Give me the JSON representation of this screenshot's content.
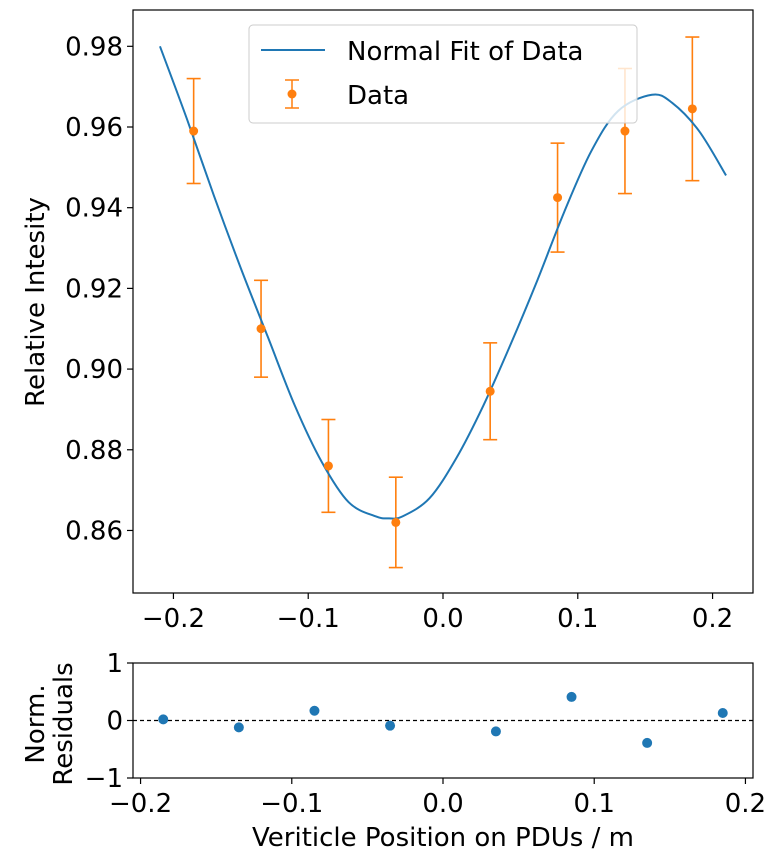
{
  "chart_data": [
    {
      "type": "line",
      "xlabel": "",
      "ylabel": "Relative Intesity",
      "xlim": [
        -0.23,
        0.23
      ],
      "ylim": [
        0.8445,
        0.989
      ],
      "xticks": [
        -0.2,
        -0.1,
        0.0,
        0.1,
        0.2
      ],
      "xtick_labels": [
        "−0.2",
        "−0.1",
        "0.0",
        "0.1",
        "0.2"
      ],
      "yticks": [
        0.86,
        0.88,
        0.9,
        0.92,
        0.94,
        0.96,
        0.98
      ],
      "ytick_labels": [
        "0.86",
        "0.88",
        "0.90",
        "0.92",
        "0.94",
        "0.96",
        "0.98"
      ],
      "grid": false,
      "legend_position": "top-center",
      "fit": {
        "name": "Normal Fit of Data",
        "color": "#1f77b4",
        "x": [
          -0.21,
          -0.19,
          -0.17,
          -0.15,
          -0.13,
          -0.11,
          -0.09,
          -0.07,
          -0.05,
          -0.04,
          -0.03,
          -0.01,
          0.01,
          0.03,
          0.05,
          0.07,
          0.09,
          0.11,
          0.13,
          0.155,
          0.17,
          0.19,
          0.21
        ],
        "y": [
          0.98,
          0.962,
          0.943,
          0.925,
          0.908,
          0.891,
          0.877,
          0.867,
          0.8635,
          0.863,
          0.8635,
          0.868,
          0.878,
          0.891,
          0.906,
          0.922,
          0.939,
          0.954,
          0.964,
          0.968,
          0.966,
          0.959,
          0.948
        ]
      },
      "data": {
        "name": "Data",
        "color": "#ff7f0e",
        "x": [
          -0.185,
          -0.135,
          -0.085,
          -0.035,
          0.035,
          0.085,
          0.135,
          0.185
        ],
        "y": [
          0.959,
          0.91,
          0.876,
          0.862,
          0.8945,
          0.9425,
          0.959,
          0.9645
        ],
        "yerr": [
          0.013,
          0.012,
          0.0115,
          0.0112,
          0.012,
          0.0135,
          0.0155,
          0.0178
        ]
      }
    },
    {
      "type": "scatter",
      "xlabel": "Veriticle Position on PDUs / m",
      "ylabel_lines": [
        "Norm.",
        "Residuals"
      ],
      "xlim": [
        -0.205,
        0.205
      ],
      "ylim": [
        -1,
        1
      ],
      "xticks": [
        -0.2,
        -0.1,
        0.0,
        0.1,
        0.2
      ],
      "xtick_labels": [
        "−0.2",
        "−0.1",
        "0.0",
        "0.1",
        "0.2"
      ],
      "yticks": [
        -1,
        0,
        1
      ],
      "ytick_labels": [
        "−1",
        "0",
        "1"
      ],
      "reference_line_y": 0,
      "series": [
        {
          "color": "#1f77b4",
          "x": [
            -0.185,
            -0.135,
            -0.085,
            -0.035,
            0.035,
            0.085,
            0.135,
            0.185
          ],
          "y": [
            0.02,
            -0.12,
            0.17,
            -0.09,
            -0.19,
            0.41,
            -0.39,
            0.13
          ]
        }
      ]
    }
  ]
}
